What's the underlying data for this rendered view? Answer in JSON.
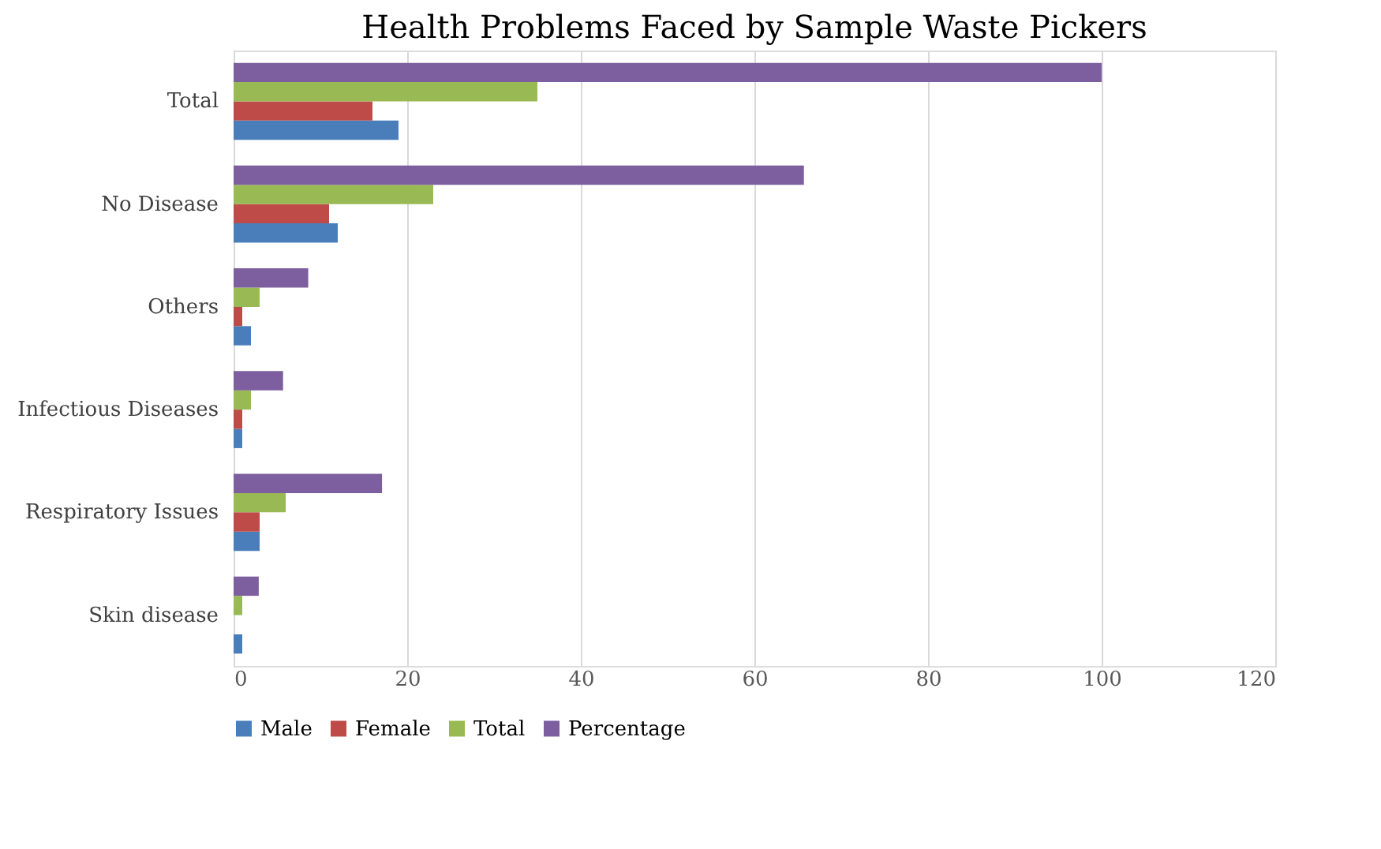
{
  "chart_data": {
    "type": "bar",
    "orientation": "horizontal",
    "title": "Health Problems Faced by Sample Waste Pickers",
    "categories": [
      "Total",
      "No Disease",
      "Others",
      "Infectious Diseases",
      "Respiratory Issues",
      "Skin disease"
    ],
    "series": [
      {
        "name": "Male",
        "color": "#4a7ebb",
        "values": [
          19,
          12,
          2,
          1,
          3,
          1
        ]
      },
      {
        "name": "Female",
        "color": "#be4b48",
        "values": [
          16,
          11,
          1,
          1,
          3,
          0
        ]
      },
      {
        "name": "Total",
        "color": "#98b954",
        "values": [
          35,
          23,
          3,
          2,
          6,
          1
        ]
      },
      {
        "name": "Percentage",
        "color": "#7d5fa0",
        "values": [
          100,
          65.7,
          8.6,
          5.7,
          17.1,
          2.9
        ]
      }
    ],
    "xlim": [
      0,
      120
    ],
    "xticks": [
      0,
      20,
      40,
      60,
      80,
      100,
      120
    ],
    "grid": "x",
    "legend": "bottom"
  }
}
